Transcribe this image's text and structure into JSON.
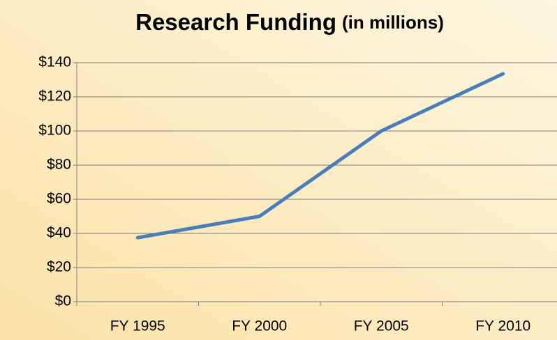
{
  "chart_data": {
    "type": "line",
    "title": "Research Funding",
    "subtitle": "(in millions)",
    "categories": [
      "FY 1995",
      "FY 2000",
      "FY 2005",
      "FY 2010"
    ],
    "series": [
      {
        "name": "Research Funding",
        "color": "#4a7ebb",
        "values": [
          37.5,
          50,
          100,
          133.5
        ]
      }
    ],
    "ylim": [
      0,
      140
    ],
    "yticks": [
      {
        "value": 0,
        "label": "$0"
      },
      {
        "value": 20,
        "label": "$20"
      },
      {
        "value": 40,
        "label": "$40"
      },
      {
        "value": 60,
        "label": "$60"
      },
      {
        "value": 80,
        "label": "$80"
      },
      {
        "value": 100,
        "label": "$100"
      },
      {
        "value": 120,
        "label": "$120"
      },
      {
        "value": 140,
        "label": "$140"
      }
    ],
    "grid": true
  }
}
